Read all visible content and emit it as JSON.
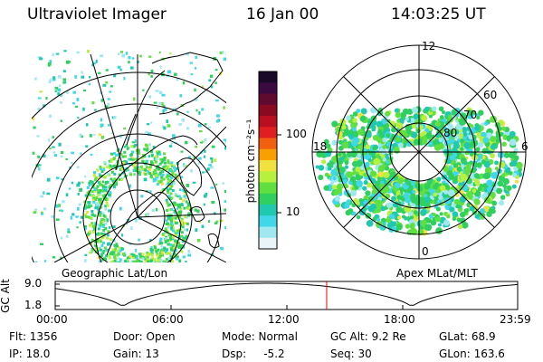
{
  "header": {
    "instrument": "Ultraviolet Imager",
    "date": "16 Jan 00",
    "time": "14:03:25 UT"
  },
  "colorbar": {
    "unit_label": "photon cm⁻²s⁻¹",
    "tick_labels": [
      "100",
      "10"
    ],
    "colors": [
      "#1a0a2a",
      "#3a0a40",
      "#600a30",
      "#8a0a20",
      "#b81020",
      "#e02020",
      "#f06010",
      "#f8a000",
      "#f0e040",
      "#b8f040",
      "#60e040",
      "#30d060",
      "#20c8b0",
      "#40d8e8",
      "#a0e8f0",
      "#e8f4f8"
    ]
  },
  "left_panel": {
    "label": "Geographic Lat/Lon"
  },
  "right_panel": {
    "label": "Apex MLat/MLT",
    "mlt_labels": {
      "top": "12",
      "left": "18",
      "right": "6",
      "bottom": "0"
    },
    "lat_labels": [
      "60",
      "70",
      "80"
    ]
  },
  "altitude_plot": {
    "ylabel": "GC Alt",
    "y_ticks": [
      "9.0",
      "1.8"
    ],
    "x_ticks": [
      "00:00",
      "06:00",
      "12:00",
      "18:00",
      "23:59"
    ],
    "current_time_fraction": 0.587,
    "marker_color": "#ff0000"
  },
  "info": {
    "flt": "Flt: 1356",
    "door": "Door: Open",
    "mode": "Mode: Normal",
    "gc_alt": "GC Alt: 9.2 Re",
    "glat": "GLat:  68.9",
    "ip": "IP: 18.0",
    "gain": "Gain: 13",
    "dsp": "Dsp:     -5.2",
    "seq": "Seq: 30",
    "glon": "GLon: 163.6"
  }
}
